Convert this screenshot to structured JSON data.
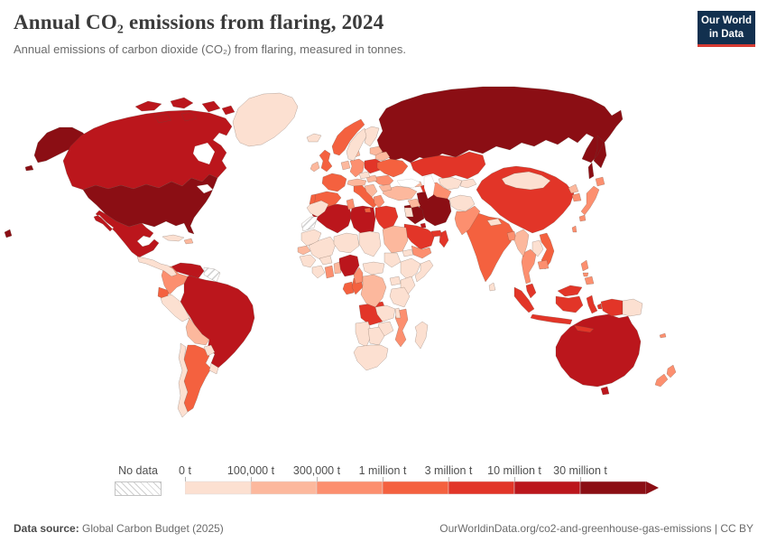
{
  "header": {
    "title": "Annual CO₂ emissions from flaring, 2024",
    "subtitle": "Annual emissions of carbon dioxide (CO₂) from flaring, measured in tonnes.",
    "logo": {
      "line1": "Our World",
      "line2": "in Data",
      "bg_color": "#12304f",
      "accent_color": "#d73b33"
    }
  },
  "legend": {
    "no_data_label": "No data",
    "bins": [
      {
        "label": "0 t",
        "color": "#fce0d1"
      },
      {
        "label": "100,000 t",
        "color": "#fcb89d"
      },
      {
        "label": "300,000 t",
        "color": "#fc8f6f"
      },
      {
        "label": "1 million t",
        "color": "#f4613f"
      },
      {
        "label": "3 million t",
        "color": "#e23528"
      },
      {
        "label": "10 million t",
        "color": "#bb161c"
      },
      {
        "label": "30 million t",
        "color": "#8b0e14"
      }
    ]
  },
  "footer": {
    "source_label": "Data source:",
    "source_text": " Global Carbon Budget (2025)",
    "link_text": "OurWorldinData.org/co2-and-greenhouse-gas-emissions | CC BY"
  },
  "chart_data": {
    "type": "choropleth",
    "title": "Annual CO₂ emissions from flaring, 2024",
    "unit": "tonnes of CO₂",
    "bin_edges_tonnes": [
      0,
      100000,
      300000,
      1000000,
      3000000,
      10000000,
      30000000
    ],
    "legend_position": "bottom",
    "countries": [
      {
        "id": "russia",
        "name": "Russia",
        "bin": 6
      },
      {
        "id": "united-states",
        "name": "United States",
        "bin": 6
      },
      {
        "id": "iran",
        "name": "Iran",
        "bin": 6
      },
      {
        "id": "iraq",
        "name": "Iraq",
        "bin": 6
      },
      {
        "id": "canada",
        "name": "Canada",
        "bin": 5
      },
      {
        "id": "mexico",
        "name": "Mexico",
        "bin": 5
      },
      {
        "id": "venezuela",
        "name": "Venezuela",
        "bin": 5
      },
      {
        "id": "brazil",
        "name": "Brazil",
        "bin": 5
      },
      {
        "id": "algeria",
        "name": "Algeria",
        "bin": 5
      },
      {
        "id": "libya",
        "name": "Libya",
        "bin": 5
      },
      {
        "id": "nigeria",
        "name": "Nigeria",
        "bin": 5
      },
      {
        "id": "australia",
        "name": "Australia",
        "bin": 5
      },
      {
        "id": "kuwait",
        "name": "Kuwait",
        "bin": 5
      },
      {
        "id": "kazakhstan",
        "name": "Kazakhstan",
        "bin": 4
      },
      {
        "id": "china",
        "name": "China",
        "bin": 4
      },
      {
        "id": "egypt",
        "name": "Egypt",
        "bin": 4
      },
      {
        "id": "saudi-arabia",
        "name": "Saudi Arabia",
        "bin": 4
      },
      {
        "id": "oman",
        "name": "Oman",
        "bin": 4
      },
      {
        "id": "uae",
        "name": "United Arab Emirates",
        "bin": 4
      },
      {
        "id": "angola",
        "name": "Angola",
        "bin": 4
      },
      {
        "id": "indonesia",
        "name": "Indonesia",
        "bin": 4
      },
      {
        "id": "malaysia",
        "name": "Malaysia",
        "bin": 4
      },
      {
        "id": "poland",
        "name": "Poland",
        "bin": 4
      },
      {
        "id": "azerbaijan",
        "name": "Azerbaijan",
        "bin": 4
      },
      {
        "id": "norway",
        "name": "Norway",
        "bin": 3
      },
      {
        "id": "united-kingdom",
        "name": "United Kingdom",
        "bin": 3
      },
      {
        "id": "france",
        "name": "France",
        "bin": 3
      },
      {
        "id": "spain",
        "name": "Spain",
        "bin": 3
      },
      {
        "id": "portugal",
        "name": "Portugal",
        "bin": 3
      },
      {
        "id": "italy",
        "name": "Italy",
        "bin": 3
      },
      {
        "id": "ukraine",
        "name": "Ukraine",
        "bin": 3
      },
      {
        "id": "india",
        "name": "India",
        "bin": 3
      },
      {
        "id": "vietnam",
        "name": "Vietnam",
        "bin": 3
      },
      {
        "id": "ecuador",
        "name": "Ecuador",
        "bin": 3
      },
      {
        "id": "argentina",
        "name": "Argentina",
        "bin": 3
      },
      {
        "id": "gabon",
        "name": "Gabon",
        "bin": 3
      },
      {
        "id": "congo",
        "name": "Congo",
        "bin": 3
      },
      {
        "id": "colombia",
        "name": "Colombia",
        "bin": 2
      },
      {
        "id": "germany",
        "name": "Germany",
        "bin": 2
      },
      {
        "id": "romania",
        "name": "Romania",
        "bin": 2
      },
      {
        "id": "greece",
        "name": "Greece",
        "bin": 2
      },
      {
        "id": "pakistan",
        "name": "Pakistan",
        "bin": 2
      },
      {
        "id": "japan",
        "name": "Japan",
        "bin": 2
      },
      {
        "id": "south-korea",
        "name": "South Korea",
        "bin": 2
      },
      {
        "id": "cameroon",
        "name": "Cameroon",
        "bin": 2
      },
      {
        "id": "mozambique",
        "name": "Mozambique",
        "bin": 2
      },
      {
        "id": "ghana",
        "name": "Ghana",
        "bin": 2
      },
      {
        "id": "new-zealand",
        "name": "New Zealand",
        "bin": 2
      },
      {
        "id": "tunisia",
        "name": "Tunisia",
        "bin": 2
      },
      {
        "id": "thailand",
        "name": "Thailand",
        "bin": 2
      },
      {
        "id": "cambodia",
        "name": "Cambodia",
        "bin": 2
      },
      {
        "id": "bangladesh",
        "name": "Bangladesh",
        "bin": 2
      },
      {
        "id": "philippines",
        "name": "Philippines",
        "bin": 2
      },
      {
        "id": "taiwan",
        "name": "Taiwan",
        "bin": 2
      },
      {
        "id": "yemen",
        "name": "Yemen",
        "bin": 2
      },
      {
        "id": "turkmenistan",
        "name": "Turkmenistan",
        "bin": 2
      },
      {
        "id": "new-caledonia",
        "name": "New Caledonia",
        "bin": 2
      },
      {
        "id": "turkey",
        "name": "Turkey",
        "bin": 1
      },
      {
        "id": "bolivia",
        "name": "Bolivia",
        "bin": 1
      },
      {
        "id": "dr-congo",
        "name": "Democratic Republic of Congo",
        "bin": 1
      },
      {
        "id": "belarus",
        "name": "Belarus",
        "bin": 1
      },
      {
        "id": "hungary",
        "name": "Hungary",
        "bin": 1
      },
      {
        "id": "syria",
        "name": "Syria",
        "bin": 1
      },
      {
        "id": "myanmar",
        "name": "Myanmar",
        "bin": 1
      },
      {
        "id": "ireland",
        "name": "Ireland",
        "bin": 1
      },
      {
        "id": "austria",
        "name": "Austria",
        "bin": 1
      },
      {
        "id": "serbia",
        "name": "Serbia",
        "bin": 1
      },
      {
        "id": "bulgaria",
        "name": "Bulgaria",
        "bin": 1
      },
      {
        "id": "baltic-states",
        "name": "Baltic states",
        "bin": 1
      },
      {
        "id": "north-korea",
        "name": "North Korea",
        "bin": 1
      },
      {
        "id": "sudan",
        "name": "Sudan",
        "bin": 1
      },
      {
        "id": "senegal",
        "name": "Senegal",
        "bin": 1
      },
      {
        "id": "benin",
        "name": "Benin",
        "bin": 1
      },
      {
        "id": "netherlands",
        "name": "Netherlands",
        "bin": 1
      },
      {
        "id": "denmark",
        "name": "Denmark",
        "bin": 1
      },
      {
        "id": "hispaniola",
        "name": "Dominican Republic",
        "bin": 1
      },
      {
        "id": "georgia",
        "name": "Georgia",
        "bin": 1
      },
      {
        "id": "greenland",
        "name": "Greenland",
        "bin": 0
      },
      {
        "id": "iceland",
        "name": "Iceland",
        "bin": 0
      },
      {
        "id": "sweden",
        "name": "Sweden",
        "bin": 0
      },
      {
        "id": "finland",
        "name": "Finland",
        "bin": 0
      },
      {
        "id": "czechia",
        "name": "Czechia",
        "bin": 0
      },
      {
        "id": "mongolia",
        "name": "Mongolia",
        "bin": 0
      },
      {
        "id": "afghanistan",
        "name": "Afghanistan",
        "bin": 0
      },
      {
        "id": "nepal",
        "name": "Nepal",
        "bin": 0
      },
      {
        "id": "sri-lanka",
        "name": "Sri Lanka",
        "bin": 0
      },
      {
        "id": "laos",
        "name": "Laos",
        "bin": 0
      },
      {
        "id": "peru",
        "name": "Peru",
        "bin": 0
      },
      {
        "id": "chile",
        "name": "Chile",
        "bin": 0
      },
      {
        "id": "paraguay",
        "name": "Paraguay",
        "bin": 0
      },
      {
        "id": "uruguay",
        "name": "Uruguay",
        "bin": 0
      },
      {
        "id": "cuba",
        "name": "Cuba",
        "bin": 0
      },
      {
        "id": "central-america",
        "name": "Central America",
        "bin": 0
      },
      {
        "id": "morocco",
        "name": "Morocco",
        "bin": 0
      },
      {
        "id": "mauritania",
        "name": "Mauritania",
        "bin": 0
      },
      {
        "id": "mali",
        "name": "Mali",
        "bin": 0
      },
      {
        "id": "niger",
        "name": "Niger",
        "bin": 0
      },
      {
        "id": "chad",
        "name": "Chad",
        "bin": 0
      },
      {
        "id": "eritrea",
        "name": "Eritrea",
        "bin": 0
      },
      {
        "id": "guinea",
        "name": "Guinea",
        "bin": 0
      },
      {
        "id": "ivory-coast",
        "name": "Cote d'Ivoire",
        "bin": 0
      },
      {
        "id": "burkina-faso",
        "name": "Burkina Faso",
        "bin": 0
      },
      {
        "id": "central-african-republic",
        "name": "Central African Republic",
        "bin": 0
      },
      {
        "id": "south-sudan",
        "name": "South Sudan",
        "bin": 0
      },
      {
        "id": "ethiopia",
        "name": "Ethiopia",
        "bin": 0
      },
      {
        "id": "somalia",
        "name": "Somalia",
        "bin": 0
      },
      {
        "id": "kenya",
        "name": "Kenya",
        "bin": 0
      },
      {
        "id": "uganda",
        "name": "Uganda",
        "bin": 0
      },
      {
        "id": "tanzania",
        "name": "Tanzania",
        "bin": 0
      },
      {
        "id": "zambia",
        "name": "Zambia",
        "bin": 0
      },
      {
        "id": "malawi",
        "name": "Malawi",
        "bin": 0
      },
      {
        "id": "zimbabwe",
        "name": "Zimbabwe",
        "bin": 0
      },
      {
        "id": "namibia",
        "name": "Namibia",
        "bin": 0
      },
      {
        "id": "botswana",
        "name": "Botswana",
        "bin": 0
      },
      {
        "id": "south-africa",
        "name": "South Africa",
        "bin": 0
      },
      {
        "id": "madagascar",
        "name": "Madagascar",
        "bin": 0
      },
      {
        "id": "papua-new-guinea",
        "name": "Papua New Guinea",
        "bin": 0
      },
      {
        "id": "jordan",
        "name": "Jordan",
        "bin": 0
      },
      {
        "id": "kyrgyzstan",
        "name": "Kyrgyzstan",
        "bin": 0
      },
      {
        "id": "uzbekistan",
        "name": "Uzbekistan",
        "bin": 0
      },
      {
        "id": "western-sahara",
        "name": "Western Sahara",
        "bin": "no-data"
      },
      {
        "id": "guyana-suriname",
        "name": "Guyana and Suriname",
        "bin": "no-data"
      }
    ]
  }
}
